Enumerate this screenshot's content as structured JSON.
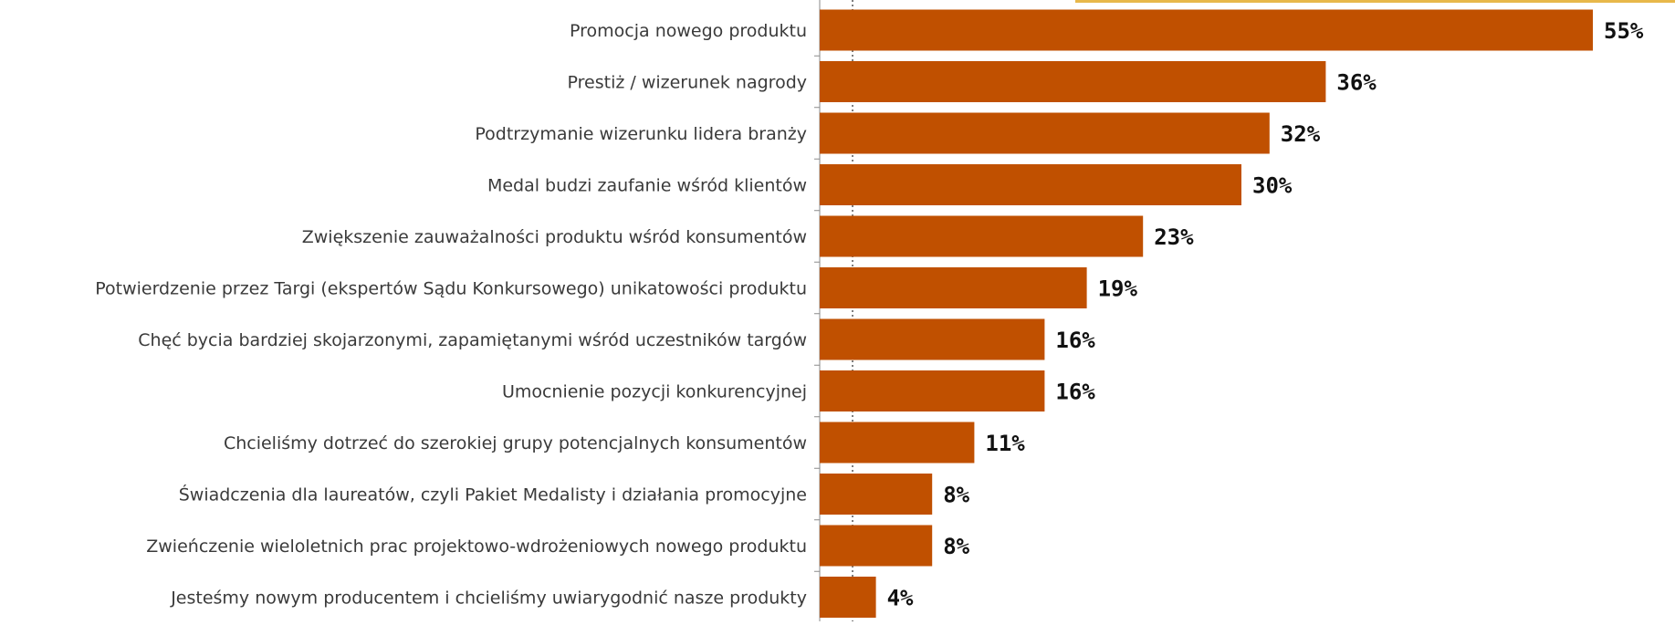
{
  "chart_data": {
    "type": "bar",
    "orientation": "horizontal",
    "categories": [
      "Promocja nowego produktu",
      "Prestiż / wizerunek nagrody",
      "Podtrzymanie wizerunku lidera branży",
      "Medal budzi zaufanie wśród klientów",
      "Zwiększenie zauważalności produktu wśród konsumentów",
      "Potwierdzenie przez Targi (ekspertów Sądu Konkursowego) unikatowości produktu",
      "Chęć bycia bardziej skojarzonymi, zapamiętanymi wśród uczestników targów",
      "Umocnienie pozycji konkurencyjnej",
      "Chcieliśmy dotrzeć do szerokiej grupy potencjalnych konsumentów",
      "Świadczenia dla laureatów, czyli Pakiet Medalisty i działania promocyjne",
      "Zwieńczenie wieloletnich prac projektowo-wdrożeniowych nowego produktu",
      "Jesteśmy nowym producentem i chcieliśmy uwiarygodnić nasze produkty"
    ],
    "values": [
      55,
      36,
      32,
      30,
      23,
      19,
      16,
      16,
      11,
      8,
      8,
      4
    ],
    "data_labels": [
      "55%",
      "36%",
      "32%",
      "30%",
      "23%",
      "19%",
      "16%",
      "16%",
      "11%",
      "8%",
      "8%",
      "4%"
    ],
    "value_unit": "%",
    "xlim": [
      0,
      55
    ],
    "grid": false,
    "colors": {
      "bar": "#C05000",
      "accent_line": "#E8B84A",
      "axis": "#8a8a8a"
    }
  }
}
